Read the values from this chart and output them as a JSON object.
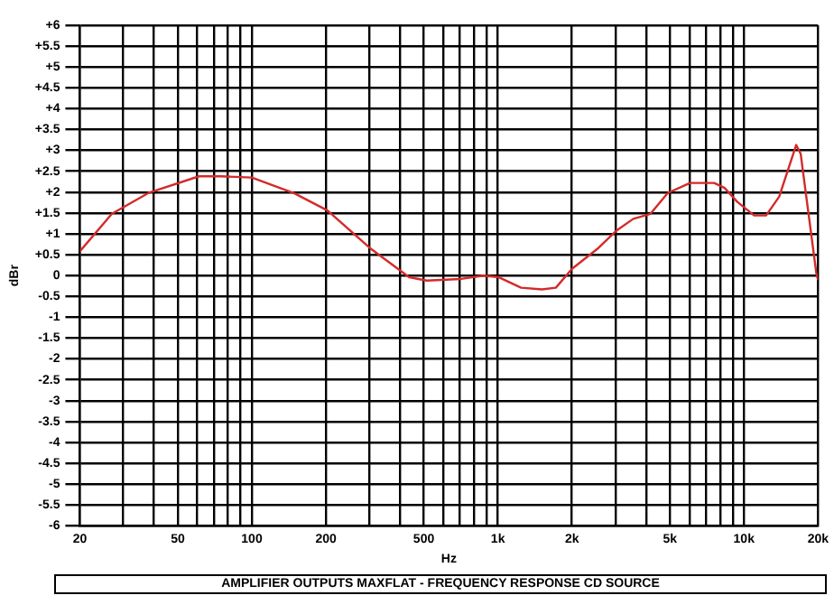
{
  "chart_data": {
    "type": "line",
    "xlabel": "Hz",
    "ylabel": "dBr",
    "log": "x",
    "grid": true,
    "marker": "none",
    "line_style": "solid",
    "annotations": [
      "AMPLIFIER OUTPUTS  MAXFLAT - FREQUENCY RESPONSE    CD SOURCE"
    ],
    "xlim": [
      20,
      20000
    ],
    "xticks": [
      20,
      {
        "value": 30,
        "label": null
      },
      {
        "value": 40,
        "label": null
      },
      50,
      {
        "value": 60,
        "label": null
      },
      {
        "value": 70,
        "label": null
      },
      {
        "value": 80,
        "label": null
      },
      {
        "value": 90,
        "label": null
      },
      100,
      200,
      {
        "value": 300,
        "label": null
      },
      {
        "value": 400,
        "label": null
      },
      500,
      {
        "value": 600,
        "label": null
      },
      {
        "value": 700,
        "label": null
      },
      {
        "value": 800,
        "label": null
      },
      {
        "value": 900,
        "label": null
      },
      {
        "value": 1000,
        "label": "1k"
      },
      {
        "value": 2000,
        "label": "2k"
      },
      {
        "value": 3000,
        "label": null
      },
      {
        "value": 4000,
        "label": null
      },
      {
        "value": 5000,
        "label": "5k"
      },
      {
        "value": 6000,
        "label": null
      },
      {
        "value": 7000,
        "label": null
      },
      {
        "value": 8000,
        "label": null
      },
      {
        "value": 9000,
        "label": null
      },
      {
        "value": 10000,
        "label": "10k"
      },
      {
        "value": 20000,
        "label": "20k"
      }
    ],
    "ylim": [
      -6,
      6
    ],
    "yticks": [
      {
        "value": 6,
        "label": "+6"
      },
      {
        "value": 5.5,
        "label": "+5.5"
      },
      {
        "value": 5,
        "label": "+5"
      },
      {
        "value": 4.5,
        "label": "+4.5"
      },
      {
        "value": 4,
        "label": "+4"
      },
      {
        "value": 3.5,
        "label": "+3.5"
      },
      {
        "value": 3,
        "label": "+3"
      },
      {
        "value": 2.5,
        "label": "+2.5"
      },
      {
        "value": 2,
        "label": "+2"
      },
      {
        "value": 1.5,
        "label": "+1.5"
      },
      {
        "value": 1,
        "label": "+1"
      },
      {
        "value": 0.5,
        "label": "+0.5"
      },
      0,
      -0.5,
      -1,
      -1.5,
      -2,
      -2.5,
      -3,
      -3.5,
      -4,
      -4.5,
      -5,
      -5.5,
      -6
    ],
    "series": [
      {
        "color": "#d42a2a",
        "x": [
          20,
          27,
          38,
          61,
          75,
          100,
          149,
          203,
          302,
          436,
          514,
          708,
          873,
          1010,
          1242,
          1511,
          1720,
          2000,
          2560,
          3020,
          3550,
          4170,
          4900,
          6040,
          7570,
          8340,
          9380,
          11000,
          12300,
          13900,
          16300,
          17000,
          19700,
          20000
        ],
        "values": [
          0.58,
          1.48,
          1.98,
          2.38,
          2.38,
          2.35,
          1.97,
          1.56,
          0.66,
          -0.04,
          -0.12,
          -0.08,
          0,
          -0.04,
          -0.29,
          -0.33,
          -0.29,
          0.16,
          0.66,
          1.07,
          1.36,
          1.48,
          1.98,
          2.22,
          2.22,
          2.1,
          1.77,
          1.44,
          1.44,
          1.89,
          3.13,
          2.92,
          0.04,
          -0.1
        ]
      }
    ]
  }
}
